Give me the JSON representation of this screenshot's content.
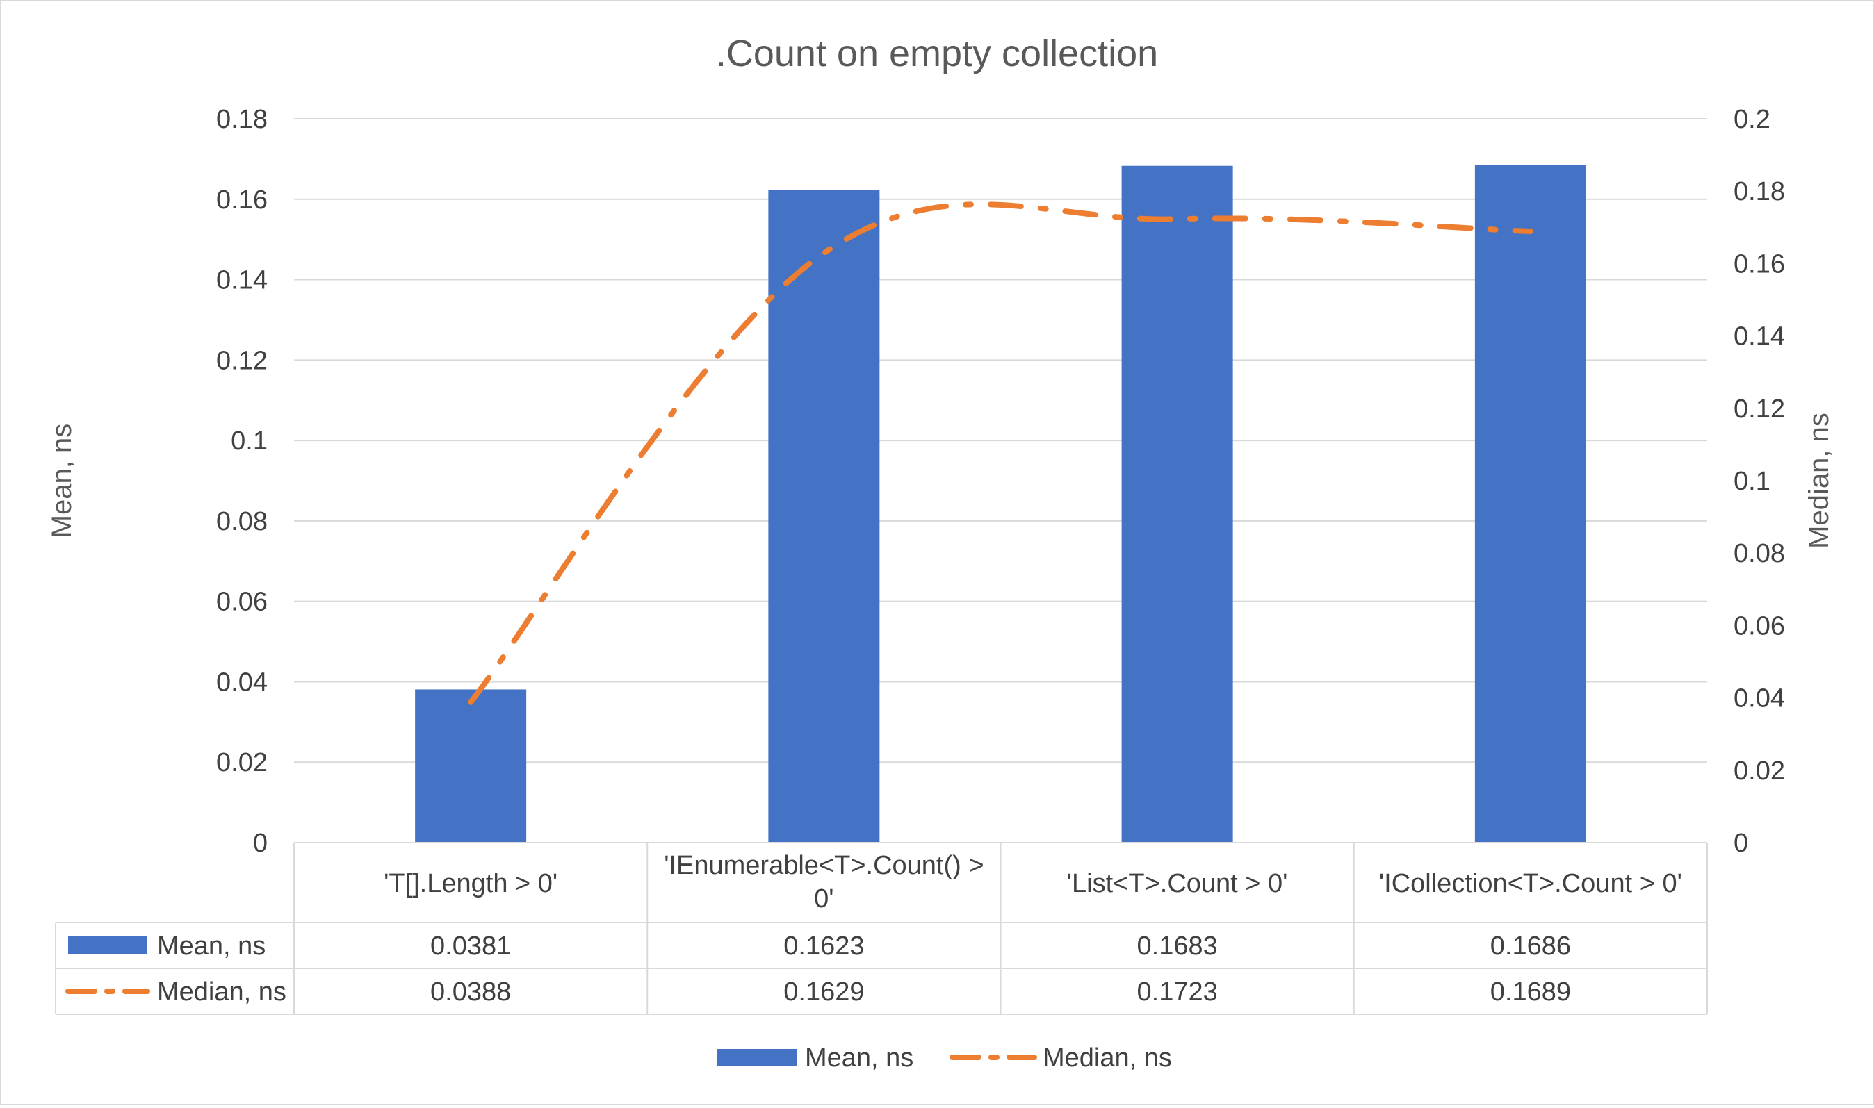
{
  "chart_data": {
    "type": "bar",
    "title": ".Count on empty collection",
    "categories": [
      [
        "'T[].Length > 0'"
      ],
      [
        "'IEnumerable<T>.Count() >",
        "0'"
      ],
      [
        "'List<T>.Count > 0'"
      ],
      [
        "'ICollection<T>.Count > 0'"
      ]
    ],
    "series": [
      {
        "name": "Mean, ns",
        "type": "bar",
        "axis": "left",
        "color": "#4472C4",
        "values": [
          0.0381,
          0.1623,
          0.1683,
          0.1686
        ],
        "labels": [
          "0.0381",
          "0.1623",
          "0.1683",
          "0.1686"
        ]
      },
      {
        "name": "Median, ns",
        "type": "line",
        "axis": "right",
        "color": "#ED7D31",
        "dash": "dash-dot",
        "values": [
          0.0388,
          0.1629,
          0.1723,
          0.1689
        ],
        "labels": [
          "0.0388",
          "0.1629",
          "0.1723",
          "0.1689"
        ]
      }
    ],
    "y_left": {
      "label": "Mean, ns",
      "min": 0,
      "max": 0.18,
      "ticks": [
        "0",
        "0.02",
        "0.04",
        "0.06",
        "0.08",
        "0.1",
        "0.12",
        "0.14",
        "0.16",
        "0.18"
      ]
    },
    "y_right": {
      "label": "Median, ns",
      "min": 0,
      "max": 0.2,
      "ticks": [
        "0",
        "0.02",
        "0.04",
        "0.06",
        "0.08",
        "0.1",
        "0.12",
        "0.14",
        "0.16",
        "0.18",
        "0.2"
      ]
    },
    "grid": true,
    "data_table": true,
    "legend": "bottom"
  }
}
